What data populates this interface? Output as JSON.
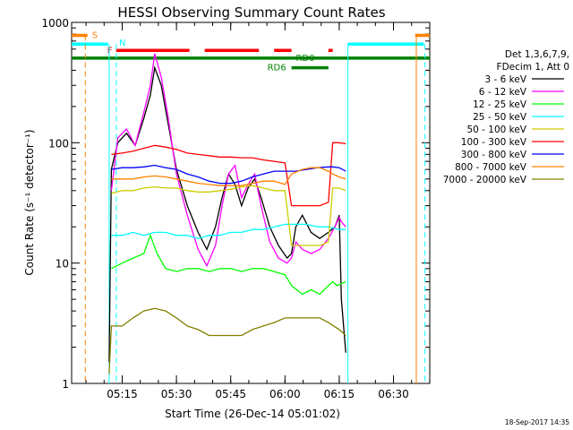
{
  "chart_data": {
    "type": "line",
    "title": "HESSI Observing Summary Count Rates",
    "xlabel": "Start Time (26-Dec-14 05:01:02)",
    "ylabel": "Count Rate (s⁻¹ detector⁻¹)",
    "yscale": "log",
    "xlim": [
      5.017,
      6.667
    ],
    "ylim": [
      1,
      1000
    ],
    "x_ticks": [
      {
        "t": 5.25,
        "label": "05:15"
      },
      {
        "t": 5.5,
        "label": "05:30"
      },
      {
        "t": 5.75,
        "label": "05:45"
      },
      {
        "t": 6.0,
        "label": "06:00"
      },
      {
        "t": 6.25,
        "label": "06:15"
      },
      {
        "t": 6.5,
        "label": "06:30"
      }
    ],
    "y_ticks": [
      {
        "v": 1,
        "label": "1"
      },
      {
        "v": 10,
        "label": "10"
      },
      {
        "v": 100,
        "label": "100"
      },
      {
        "v": 1000,
        "label": "1000"
      }
    ],
    "legend_header": [
      "Det 1,3,6,7,9,",
      "FDecim 1, Att 0"
    ],
    "series": [
      {
        "name": "3 - 6 keV",
        "color": "#000000",
        "points": [
          [
            5.19,
            1.5
          ],
          [
            5.2,
            60
          ],
          [
            5.23,
            100
          ],
          [
            5.27,
            120
          ],
          [
            5.31,
            95
          ],
          [
            5.35,
            160
          ],
          [
            5.38,
            250
          ],
          [
            5.4,
            420
          ],
          [
            5.43,
            300
          ],
          [
            5.46,
            150
          ],
          [
            5.5,
            60
          ],
          [
            5.55,
            30
          ],
          [
            5.6,
            18
          ],
          [
            5.64,
            13
          ],
          [
            5.68,
            20
          ],
          [
            5.71,
            35
          ],
          [
            5.74,
            55
          ],
          [
            5.77,
            45
          ],
          [
            5.8,
            30
          ],
          [
            5.83,
            42
          ],
          [
            5.86,
            50
          ],
          [
            5.89,
            35
          ],
          [
            5.93,
            20
          ],
          [
            5.97,
            14
          ],
          [
            6.01,
            11
          ],
          [
            6.03,
            12
          ],
          [
            6.05,
            20
          ],
          [
            6.08,
            25
          ],
          [
            6.12,
            18
          ],
          [
            6.16,
            16
          ],
          [
            6.2,
            18
          ],
          [
            6.23,
            20
          ],
          [
            6.25,
            25
          ],
          [
            6.26,
            5
          ],
          [
            6.28,
            1.8
          ]
        ]
      },
      {
        "name": "6 - 12 keV",
        "color": "#ff00ff",
        "points": [
          [
            5.2,
            40
          ],
          [
            5.23,
            110
          ],
          [
            5.27,
            130
          ],
          [
            5.31,
            95
          ],
          [
            5.35,
            180
          ],
          [
            5.38,
            300
          ],
          [
            5.4,
            550
          ],
          [
            5.43,
            350
          ],
          [
            5.46,
            170
          ],
          [
            5.5,
            55
          ],
          [
            5.55,
            25
          ],
          [
            5.6,
            13
          ],
          [
            5.64,
            9.5
          ],
          [
            5.68,
            14
          ],
          [
            5.71,
            30
          ],
          [
            5.74,
            55
          ],
          [
            5.77,
            65
          ],
          [
            5.8,
            35
          ],
          [
            5.83,
            45
          ],
          [
            5.86,
            55
          ],
          [
            5.89,
            30
          ],
          [
            5.93,
            15
          ],
          [
            5.97,
            11
          ],
          [
            6.01,
            10
          ],
          [
            6.03,
            11
          ],
          [
            6.05,
            15
          ],
          [
            6.08,
            13
          ],
          [
            6.12,
            12
          ],
          [
            6.16,
            13
          ],
          [
            6.2,
            16
          ],
          [
            6.23,
            20
          ],
          [
            6.25,
            24
          ],
          [
            6.26,
            22
          ],
          [
            6.28,
            20
          ]
        ]
      },
      {
        "name": "12 - 25 keV",
        "color": "#00ff00",
        "points": [
          [
            5.2,
            9
          ],
          [
            5.25,
            10
          ],
          [
            5.3,
            11
          ],
          [
            5.35,
            12
          ],
          [
            5.38,
            17
          ],
          [
            5.41,
            12
          ],
          [
            5.45,
            9
          ],
          [
            5.5,
            8.5
          ],
          [
            5.55,
            9
          ],
          [
            5.6,
            9
          ],
          [
            5.65,
            8.5
          ],
          [
            5.7,
            9
          ],
          [
            5.75,
            9
          ],
          [
            5.8,
            8.5
          ],
          [
            5.85,
            9
          ],
          [
            5.9,
            9
          ],
          [
            5.95,
            8.5
          ],
          [
            6.0,
            8
          ],
          [
            6.03,
            6.5
          ],
          [
            6.08,
            5.5
          ],
          [
            6.12,
            6
          ],
          [
            6.16,
            5.5
          ],
          [
            6.2,
            6.5
          ],
          [
            6.22,
            7
          ],
          [
            6.24,
            6.5
          ],
          [
            6.28,
            7
          ]
        ]
      },
      {
        "name": "25 - 50 keV",
        "color": "#00ffff",
        "points": [
          [
            5.2,
            17
          ],
          [
            5.25,
            17
          ],
          [
            5.3,
            18
          ],
          [
            5.35,
            17
          ],
          [
            5.4,
            18
          ],
          [
            5.45,
            18
          ],
          [
            5.5,
            17
          ],
          [
            5.55,
            17
          ],
          [
            5.6,
            16
          ],
          [
            5.65,
            17
          ],
          [
            5.7,
            17
          ],
          [
            5.75,
            18
          ],
          [
            5.8,
            18
          ],
          [
            5.85,
            19
          ],
          [
            5.9,
            19
          ],
          [
            5.95,
            20
          ],
          [
            6.0,
            21
          ],
          [
            6.05,
            21
          ],
          [
            6.1,
            21
          ],
          [
            6.15,
            20
          ],
          [
            6.2,
            20
          ],
          [
            6.25,
            19
          ],
          [
            6.28,
            19
          ]
        ]
      },
      {
        "name": "50 - 100 keV",
        "color": "#cccc00",
        "points": [
          [
            5.2,
            38
          ],
          [
            5.25,
            40
          ],
          [
            5.3,
            40
          ],
          [
            5.35,
            42
          ],
          [
            5.4,
            43
          ],
          [
            5.45,
            42
          ],
          [
            5.5,
            42
          ],
          [
            5.55,
            40
          ],
          [
            5.6,
            39
          ],
          [
            5.65,
            39
          ],
          [
            5.7,
            40
          ],
          [
            5.75,
            41
          ],
          [
            5.8,
            43
          ],
          [
            5.85,
            44
          ],
          [
            5.9,
            42
          ],
          [
            5.95,
            40
          ],
          [
            6.0,
            40
          ],
          [
            6.03,
            14
          ],
          [
            6.08,
            14
          ],
          [
            6.12,
            14
          ],
          [
            6.16,
            14
          ],
          [
            6.2,
            15
          ],
          [
            6.22,
            42
          ],
          [
            6.25,
            42
          ],
          [
            6.28,
            40
          ]
        ]
      },
      {
        "name": "100 - 300 keV",
        "color": "#ff0000",
        "points": [
          [
            5.2,
            80
          ],
          [
            5.25,
            82
          ],
          [
            5.3,
            85
          ],
          [
            5.35,
            90
          ],
          [
            5.4,
            95
          ],
          [
            5.45,
            92
          ],
          [
            5.5,
            88
          ],
          [
            5.55,
            82
          ],
          [
            5.6,
            80
          ],
          [
            5.65,
            78
          ],
          [
            5.7,
            76
          ],
          [
            5.75,
            76
          ],
          [
            5.8,
            75
          ],
          [
            5.85,
            75
          ],
          [
            5.9,
            72
          ],
          [
            5.95,
            70
          ],
          [
            6.0,
            68
          ],
          [
            6.03,
            30
          ],
          [
            6.08,
            30
          ],
          [
            6.12,
            30
          ],
          [
            6.16,
            30
          ],
          [
            6.2,
            32
          ],
          [
            6.22,
            100
          ],
          [
            6.25,
            100
          ],
          [
            6.28,
            98
          ]
        ]
      },
      {
        "name": "300 - 800 keV",
        "color": "#0000ff",
        "points": [
          [
            5.2,
            60
          ],
          [
            5.25,
            62
          ],
          [
            5.3,
            62
          ],
          [
            5.35,
            63
          ],
          [
            5.4,
            65
          ],
          [
            5.45,
            62
          ],
          [
            5.5,
            60
          ],
          [
            5.55,
            55
          ],
          [
            5.6,
            52
          ],
          [
            5.65,
            48
          ],
          [
            5.7,
            46
          ],
          [
            5.75,
            46
          ],
          [
            5.8,
            48
          ],
          [
            5.85,
            52
          ],
          [
            5.9,
            55
          ],
          [
            5.95,
            58
          ],
          [
            6.0,
            58
          ],
          [
            6.05,
            58
          ],
          [
            6.1,
            60
          ],
          [
            6.15,
            62
          ],
          [
            6.2,
            63
          ],
          [
            6.22,
            63
          ],
          [
            6.25,
            62
          ],
          [
            6.28,
            58
          ]
        ]
      },
      {
        "name": "800 - 7000 keV",
        "color": "#ff8000",
        "points": [
          [
            5.2,
            50
          ],
          [
            5.25,
            50
          ],
          [
            5.3,
            50
          ],
          [
            5.35,
            52
          ],
          [
            5.4,
            53
          ],
          [
            5.45,
            52
          ],
          [
            5.5,
            50
          ],
          [
            5.55,
            48
          ],
          [
            5.6,
            46
          ],
          [
            5.65,
            45
          ],
          [
            5.7,
            44
          ],
          [
            5.75,
            44
          ],
          [
            5.8,
            44
          ],
          [
            5.85,
            46
          ],
          [
            5.9,
            48
          ],
          [
            5.95,
            48
          ],
          [
            6.0,
            45
          ],
          [
            6.03,
            55
          ],
          [
            6.08,
            60
          ],
          [
            6.12,
            62
          ],
          [
            6.16,
            62
          ],
          [
            6.2,
            58
          ],
          [
            6.22,
            55
          ],
          [
            6.25,
            52
          ],
          [
            6.28,
            50
          ]
        ]
      },
      {
        "name": "7000 - 20000 keV",
        "color": "#808000",
        "points": [
          [
            5.19,
            1.2
          ],
          [
            5.2,
            3
          ],
          [
            5.25,
            3
          ],
          [
            5.3,
            3.5
          ],
          [
            5.35,
            4
          ],
          [
            5.4,
            4.2
          ],
          [
            5.45,
            4
          ],
          [
            5.5,
            3.5
          ],
          [
            5.55,
            3
          ],
          [
            5.6,
            2.8
          ],
          [
            5.65,
            2.5
          ],
          [
            5.7,
            2.5
          ],
          [
            5.75,
            2.5
          ],
          [
            5.8,
            2.5
          ],
          [
            5.85,
            2.8
          ],
          [
            5.9,
            3
          ],
          [
            5.95,
            3.2
          ],
          [
            6.0,
            3.5
          ],
          [
            6.03,
            3.5
          ],
          [
            6.08,
            3.5
          ],
          [
            6.12,
            3.5
          ],
          [
            6.16,
            3.5
          ],
          [
            6.2,
            3.2
          ],
          [
            6.25,
            2.8
          ],
          [
            6.28,
            2.5
          ]
        ]
      }
    ],
    "status_bars": [
      {
        "label": "S",
        "color": "#ff8000",
        "v": 780,
        "segments": [
          [
            5.017,
            5.09
          ],
          [
            6.6,
            6.667
          ]
        ]
      },
      {
        "label": "N",
        "color": "#00ffff",
        "v": 660,
        "segments": [
          [
            5.017,
            5.185
          ],
          [
            6.29,
            6.64
          ]
        ]
      },
      {
        "label": "F",
        "color": "#ff0000",
        "v": 585,
        "segments": [
          [
            5.222,
            5.56
          ],
          [
            5.63,
            5.88
          ],
          [
            5.95,
            6.03
          ],
          [
            6.2,
            6.22
          ]
        ]
      },
      {
        "label": "RD0",
        "color": "#008000",
        "v": 505,
        "segments": [
          [
            5.017,
            6.667
          ]
        ]
      },
      {
        "label": "RD6",
        "color": "#008000",
        "v": 420,
        "segments": [
          [
            6.03,
            6.2
          ]
        ]
      }
    ],
    "vertical_lines": [
      {
        "t": 5.08,
        "color": "#ff8000",
        "style": "dash",
        "v_top": 780
      },
      {
        "t": 5.223,
        "color": "#00ffff",
        "style": "dash",
        "v_top": 660
      },
      {
        "t": 5.19,
        "color": "#00ffff",
        "style": "solid",
        "v_top": 660
      },
      {
        "t": 6.29,
        "color": "#00ffff",
        "style": "solid",
        "v_top": 660
      },
      {
        "t": 6.605,
        "color": "#ff8000",
        "style": "solid",
        "v_top": 780
      },
      {
        "t": 6.645,
        "color": "#00ffff",
        "style": "dash",
        "v_top": 660
      }
    ],
    "footer_stamp": "18-Sep-2017 14:35"
  }
}
